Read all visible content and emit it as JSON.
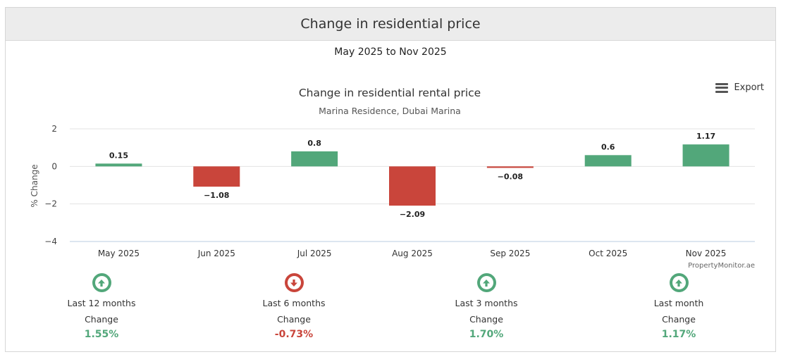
{
  "panel": {
    "title": "Change in residential price",
    "range": "May 2025 to Nov 2025"
  },
  "export": {
    "label": "Export",
    "icon": "menu-icon"
  },
  "colors": {
    "positive": "#52a77a",
    "negative": "#c9453b",
    "up_arrow": "#52a77a",
    "down_arrow": "#c9453b"
  },
  "chart_data": {
    "type": "bar",
    "title": "Change in residential rental price",
    "subtitle": "Marina Residence, Dubai Marina",
    "ylabel": "% Change",
    "xlabel": "",
    "ylim": [
      -4,
      2
    ],
    "yticks": [
      2,
      0,
      -2,
      -4
    ],
    "ytick_labels": [
      "2",
      "0",
      "−2",
      "−4"
    ],
    "categories": [
      "May 2025",
      "Jun 2025",
      "Jul 2025",
      "Aug 2025",
      "Sep 2025",
      "Oct 2025",
      "Nov 2025"
    ],
    "values": [
      0.15,
      -1.08,
      0.8,
      -2.09,
      -0.08,
      0.6,
      1.17
    ],
    "data_labels": [
      "0.15",
      "−1.08",
      "0.8",
      "−2.09",
      "−0.08",
      "0.6",
      "1.17"
    ],
    "grid": true,
    "credit": "PropertyMonitor.ae"
  },
  "stats": [
    {
      "period": "Last 12 months",
      "label": "Change",
      "value": "1.55%",
      "direction": "up"
    },
    {
      "period": "Last 6 months",
      "label": "Change",
      "value": "-0.73%",
      "direction": "down"
    },
    {
      "period": "Last 3 months",
      "label": "Change",
      "value": "1.70%",
      "direction": "up"
    },
    {
      "period": "Last month",
      "label": "Change",
      "value": "1.17%",
      "direction": "up"
    }
  ]
}
